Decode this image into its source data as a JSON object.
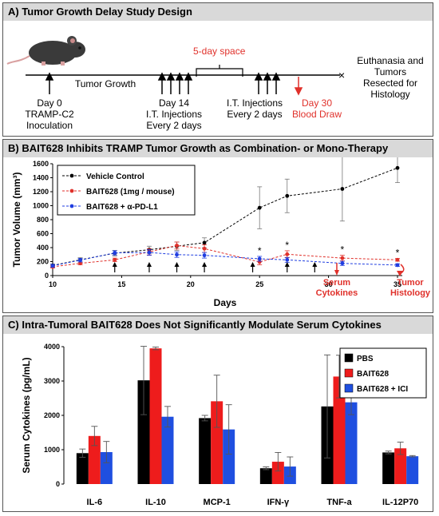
{
  "panel_a": {
    "title": "A) Tumor Growth Delay Study Design",
    "gap_label": "5-day space",
    "labels": {
      "day0": "Day 0",
      "inoculation1": "TRAMP-C2",
      "inoculation2": "Inoculation",
      "growth": "Tumor Growth",
      "day14": "Day 14",
      "it1": "I.T. Injections",
      "every1": "Every 2 days",
      "it2": "I.T. Injections",
      "every2": "Every 2 days",
      "day30": "Day 30",
      "blood": "Blood Draw",
      "end1": "Euthanasia and",
      "end2": "Tumors",
      "end3": "Resected for",
      "end4": "Histology"
    },
    "colors": {
      "accent": "#e0312b"
    }
  },
  "panel_b": {
    "title": "B) BAIT628 Inhibits TRAMP Tumor Growth as Combination- or Mono-Therapy",
    "annotations": {
      "serum1": "Serum",
      "serum2": "Cytokines",
      "tumor1": "Tumor",
      "tumor2": "Histology",
      "star": "*"
    }
  },
  "panel_c": {
    "title": "C) Intra-Tumoral BAIT628 Does Not Significantly Modulate Serum Cytokines"
  },
  "chart_data": [
    {
      "type": "line",
      "xlabel": "Days",
      "ylabel": "Tumor Volume (mm³)",
      "xlim": [
        10,
        35
      ],
      "ylim": [
        0,
        1600
      ],
      "xticks": [
        10,
        15,
        20,
        25,
        30,
        35
      ],
      "yticks": [
        0,
        200,
        400,
        600,
        800,
        1000,
        1200,
        1400,
        1600
      ],
      "legend_position": "top-left",
      "series": [
        {
          "name": "Vehicle Control",
          "color": "#000000",
          "x": [
            10,
            12,
            14.5,
            17,
            19,
            21,
            25,
            27,
            31,
            35
          ],
          "y": [
            145,
            225,
            320,
            370,
            420,
            470,
            970,
            1140,
            1240,
            1540
          ],
          "err": [
            20,
            30,
            40,
            50,
            60,
            70,
            300,
            240,
            460,
            210
          ]
        },
        {
          "name": "BAIT628 (1mg / mouse)",
          "color": "#e0312b",
          "x": [
            10,
            12,
            14.5,
            17,
            19,
            21,
            25,
            27,
            31,
            35
          ],
          "y": [
            125,
            175,
            225,
            340,
            430,
            385,
            195,
            305,
            250,
            225
          ],
          "err": [
            15,
            20,
            25,
            45,
            50,
            55,
            40,
            50,
            40,
            20
          ]
        },
        {
          "name": "BAIT628 + α-PD-L1",
          "color": "#1f3de0",
          "x": [
            10,
            12,
            14.5,
            17,
            19,
            21,
            25,
            27,
            31,
            35
          ],
          "y": [
            140,
            220,
            325,
            330,
            300,
            290,
            240,
            225,
            175,
            150
          ],
          "err": [
            20,
            25,
            30,
            40,
            40,
            40,
            35,
            35,
            30,
            20
          ]
        }
      ],
      "significance_at_x": [
        25,
        27,
        31,
        35
      ],
      "injection_days": [
        14.5,
        17,
        19,
        21,
        24.5,
        27,
        29
      ]
    },
    {
      "type": "bar",
      "ylabel": "Serum Cytokines (pg/mL)",
      "ylim": [
        0,
        4000
      ],
      "yticks": [
        0,
        1000,
        2000,
        3000,
        4000
      ],
      "legend_position": "top-right",
      "categories": [
        "IL-6",
        "IL-10",
        "MCP-1",
        "IFN-γ",
        "TNF-a",
        "IL-12P70"
      ],
      "series": [
        {
          "name": "PBS",
          "color": "#000000",
          "values": [
            900,
            3020,
            1920,
            460,
            2260,
            920
          ],
          "err": [
            120,
            1000,
            80,
            40,
            1500,
            40
          ]
        },
        {
          "name": "BAIT628",
          "color": "#ee1c1c",
          "values": [
            1400,
            3950,
            2410,
            650,
            3130,
            1040
          ],
          "err": [
            280,
            40,
            760,
            270,
            620,
            180
          ]
        },
        {
          "name": "BAIT628 + ICI",
          "color": "#1f4fe0",
          "values": [
            930,
            1960,
            1590,
            510,
            2380,
            810
          ],
          "err": [
            310,
            300,
            720,
            280,
            360,
            20
          ]
        }
      ]
    }
  ]
}
